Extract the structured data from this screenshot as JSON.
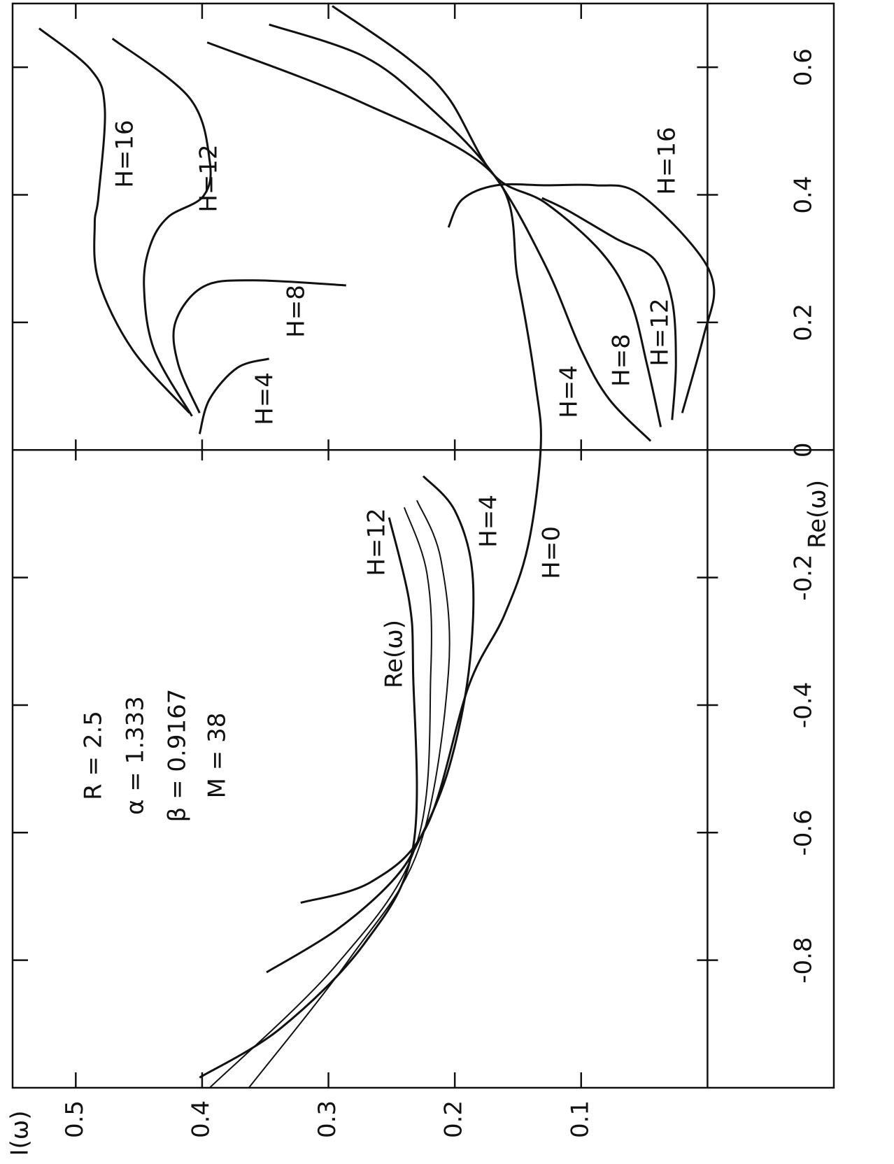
{
  "chart_data": {
    "type": "line",
    "xlabel": "Re(ω)",
    "ylabel": "I(ω)",
    "xlim": [
      -1.0,
      0.7
    ],
    "xticks": [
      -0.8,
      -0.6,
      -0.4,
      -0.2,
      0,
      0.2,
      0.4,
      0.6
    ],
    "ylim": [
      -0.1,
      0.55
    ],
    "yticks": [
      0.1,
      0.2,
      0.3,
      0.4,
      0.5
    ],
    "color": "#111111",
    "annotations": [
      "R = 2.5",
      "α = 1.333",
      "β = 0.9167",
      "M = 38",
      "Re(ω)"
    ],
    "series": [
      {
        "name": "H=0",
        "x": [
          0.639,
          0.546,
          0.431,
          0.266,
          0.102,
          0.003,
          -0.15,
          -0.26,
          -0.37,
          -0.589,
          -0.677,
          -0.71
        ],
        "values": [
          0.396,
          0.275,
          0.169,
          0.15,
          0.136,
          0.132,
          0.142,
          0.161,
          0.189,
          0.222,
          0.266,
          0.322
        ]
      },
      {
        "name": "H=4",
        "x": [
          0.667,
          0.617,
          0.541,
          0.431,
          0.288,
          0.157,
          0.08,
          0.014
        ],
        "values": [
          0.347,
          0.272,
          0.222,
          0.169,
          0.128,
          0.1,
          0.078,
          0.045
        ]
      },
      {
        "name": "H=8",
        "x": [
          0.696,
          0.617,
          0.552,
          0.431,
          0.387,
          0.31,
          0.234,
          0.135,
          0.036
        ],
        "values": [
          0.297,
          0.239,
          0.205,
          0.169,
          0.128,
          0.084,
          0.061,
          0.048,
          0.037
        ]
      },
      {
        "name": "H=12",
        "x": [
          0.395,
          0.376,
          0.332,
          0.299,
          0.234,
          0.135,
          0.047
        ],
        "values": [
          0.131,
          0.111,
          0.073,
          0.042,
          0.028,
          0.025,
          0.028
        ]
      },
      {
        "name": "H=16",
        "x": [
          0.349,
          0.393,
          0.415,
          0.415,
          0.415,
          0.404,
          0.321,
          0.256,
          0.179,
          0.058
        ],
        "values": [
          0.205,
          0.194,
          0.167,
          0.128,
          0.089,
          0.056,
          0.012,
          -0.005,
          0.003,
          0.02
        ]
      },
      {
        "name": "H=4",
        "x": [
          0.025,
          0.08,
          0.129,
          0.143
        ],
        "values": [
          0.402,
          0.394,
          0.372,
          0.347
        ]
      },
      {
        "name": "H=8",
        "x": [
          0.058,
          0.135,
          0.201,
          0.256,
          0.266,
          0.258
        ],
        "values": [
          0.402,
          0.419,
          0.421,
          0.399,
          0.36,
          0.286
        ]
      },
      {
        "name": "H=12",
        "x": [
          0.053,
          0.157,
          0.256,
          0.321,
          0.365,
          0.398,
          0.453,
          0.552,
          0.645
        ],
        "values": [
          0.408,
          0.438,
          0.446,
          0.441,
          0.427,
          0.399,
          0.394,
          0.41,
          0.471
        ]
      },
      {
        "name": "H=16",
        "x": [
          0.058,
          0.157,
          0.266,
          0.354,
          0.398,
          0.535,
          0.596,
          0.661
        ],
        "values": [
          0.41,
          0.455,
          0.482,
          0.485,
          0.482,
          0.477,
          0.488,
          0.529
        ]
      },
      {
        "name": "H=4",
        "x": [
          -0.041,
          -0.095,
          -0.194,
          -0.348,
          -0.501,
          -0.611,
          -0.677,
          -0.753,
          -0.819
        ],
        "values": [
          0.225,
          0.2,
          0.186,
          0.189,
          0.205,
          0.228,
          0.25,
          0.294,
          0.349
        ]
      },
      {
        "x": [
          -0.079,
          -0.172,
          -0.348,
          -0.622,
          -0.797,
          -1.0
        ],
        "values": [
          0.23,
          0.211,
          0.205,
          0.228,
          0.283,
          0.363
        ]
      },
      {
        "x": [
          -0.09,
          -0.194,
          -0.348,
          -0.616,
          -0.808,
          -1.0
        ],
        "values": [
          0.24,
          0.222,
          0.219,
          0.23,
          0.294,
          0.394
        ]
      },
      {
        "name": "H=12",
        "x": [
          -0.106,
          -0.238,
          -0.348,
          -0.622,
          -0.775,
          -0.907,
          -0.984
        ],
        "values": [
          0.252,
          0.236,
          0.233,
          0.233,
          0.272,
          0.338,
          0.402
        ]
      }
    ]
  }
}
